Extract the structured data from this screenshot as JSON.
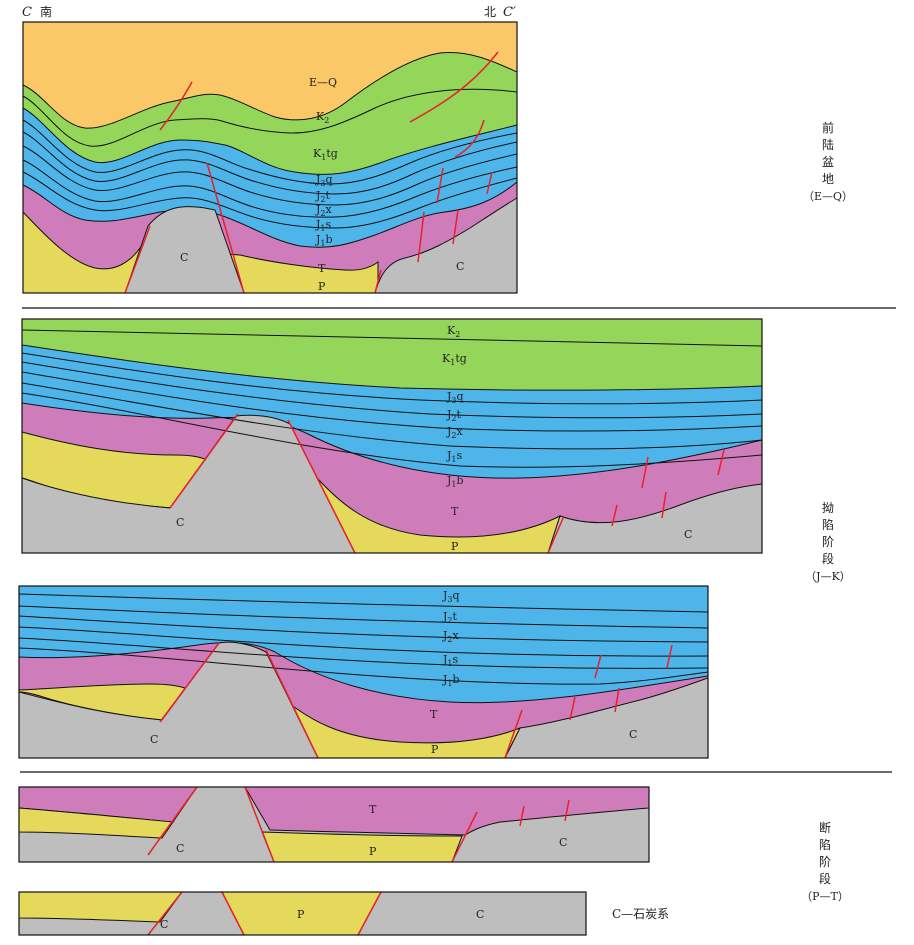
{
  "header": {
    "left_letter": "C",
    "left_dir": "南",
    "right_dir": "北",
    "right_letter": "C′"
  },
  "stage_labels": {
    "foreland": [
      "前",
      "陆",
      "盆",
      "地",
      "（E—Q）"
    ],
    "depression": [
      "拗",
      "陷",
      "阶",
      "段",
      "（J—K）"
    ],
    "rift": [
      "断",
      "陷",
      "阶",
      "段",
      "（P—T）"
    ]
  },
  "legend": "C—石炭系",
  "units": {
    "EQ": "E—Q",
    "K2": {
      "base": "K",
      "sub": "2",
      "tail": ""
    },
    "K1tg": {
      "base": "K",
      "sub": "1",
      "tail": "tg"
    },
    "J3q": {
      "base": "J",
      "sub": "3",
      "tail": "q"
    },
    "J2t": {
      "base": "J",
      "sub": "2",
      "tail": "t"
    },
    "J2x": {
      "base": "J",
      "sub": "2",
      "tail": "x"
    },
    "J1s": {
      "base": "J",
      "sub": "1",
      "tail": "s"
    },
    "J1b": {
      "base": "J",
      "sub": "1",
      "tail": "b"
    },
    "T": "T",
    "P": "P",
    "C": "C"
  },
  "colors": {
    "eq": "#fbc867",
    "k": "#94d65a",
    "j": "#4db5ea",
    "t": "#cf7cbb",
    "p": "#e4d95a",
    "c": "#bebebe",
    "fault": "#e8202a",
    "line": "#111111"
  }
}
